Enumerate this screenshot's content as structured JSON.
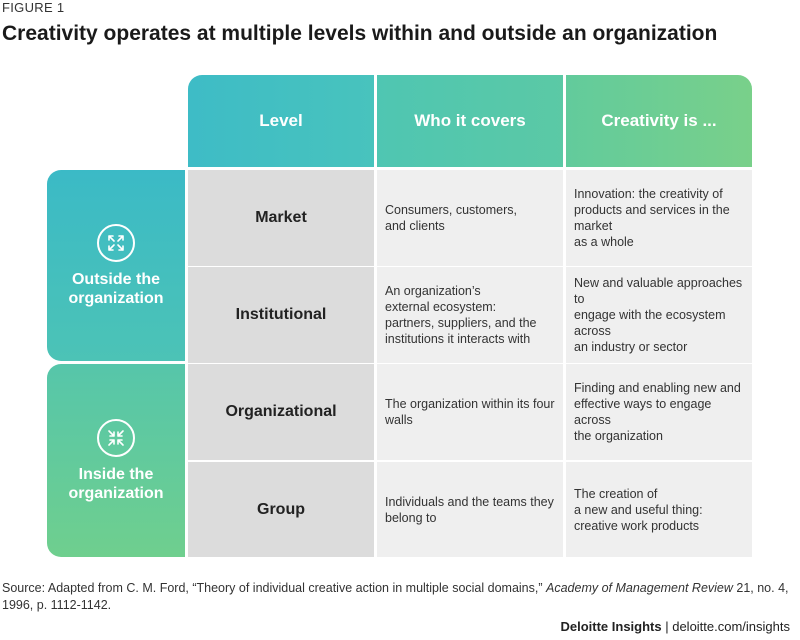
{
  "figure_label": "FIGURE 1",
  "title": "Creativity operates at multiple levels within and outside an organization",
  "headers": {
    "level": "Level",
    "who": "Who it covers",
    "creativity": "Creativity is ..."
  },
  "groups": {
    "outside": {
      "label": "Outside the organization",
      "icon": "expand-arrows-icon"
    },
    "inside": {
      "label": "Inside the organization",
      "icon": "collapse-arrows-icon"
    }
  },
  "rows": [
    {
      "level": "Market",
      "who": "Consumers, customers,\nand clients",
      "creativity": "Innovation: the creativity of\nproducts and services in the market\nas a whole"
    },
    {
      "level": "Institutional",
      "who": "An organization’s\nexternal ecosystem:\npartners, suppliers, and the\ninstitutions it interacts with",
      "creativity": "New and valuable approaches to\nengage with the ecosystem across\nan industry or sector"
    },
    {
      "level": "Organizational",
      "who": "The organization within its four walls",
      "creativity": "Finding and enabling new and\neffective ways to engage across\nthe organization"
    },
    {
      "level": "Group",
      "who": "Individuals and the teams they\nbelong to",
      "creativity": "The creation of\na new and useful thing:\ncreative work products"
    }
  ],
  "source": {
    "prefix": "Source: Adapted from C. M. Ford, “Theory of individual creative action in multiple social domains,” ",
    "journal": "Academy of Management Review",
    "suffix": " 21, no. 4, 1996, p. 1112-1142."
  },
  "footer": {
    "brand": "Deloitte Insights",
    "separator": " | ",
    "url": "deloitte.com/insights"
  },
  "colors": {
    "teal": "#3ebcc6",
    "green": "#79d08a",
    "level_cell": "#dcdcdc",
    "content_cell": "#efefef"
  }
}
